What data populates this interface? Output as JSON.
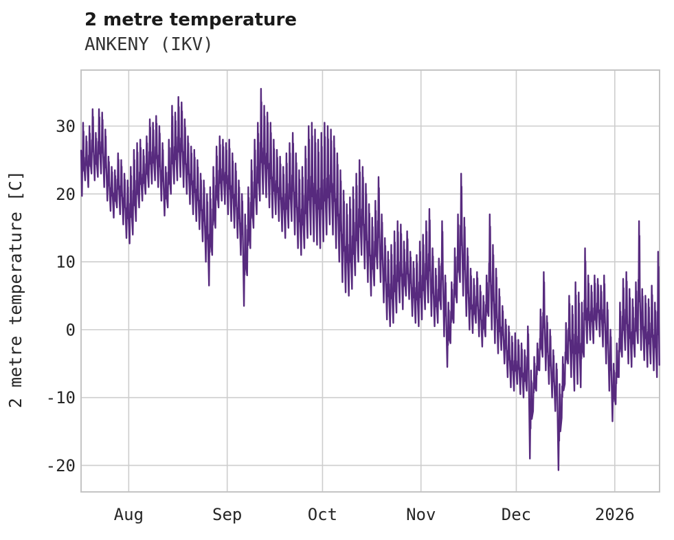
{
  "header": {
    "title": "2 metre temperature",
    "subtitle": "ANKENY (IKV)"
  },
  "chart_data": {
    "type": "line",
    "title": "2 metre temperature",
    "subtitle": "ANKENY (IKV)",
    "xlabel": "",
    "ylabel": "2 metre temperature [C]",
    "grid": true,
    "legend": "none",
    "line_color": "#572a7e",
    "grid_color": "#cdcdcd",
    "frame_color": "#c4c4c4",
    "ylim": [
      -23.9,
      38.25
    ],
    "xlim_days": [
      0,
      182.1
    ],
    "yticks": [
      30,
      20,
      10,
      0,
      -10,
      -20
    ],
    "xticks": [
      {
        "label": "Aug",
        "day": 15
      },
      {
        "label": "Sep",
        "day": 46
      },
      {
        "label": "Oct",
        "day": 76
      },
      {
        "label": "Nov",
        "day": 107
      },
      {
        "label": "Dec",
        "day": 137
      },
      {
        "label": "2026",
        "day": 168
      }
    ],
    "series": [
      {
        "name": "2 metre temperature",
        "daily_format": [
          "date",
          "min_c",
          "max_c"
        ],
        "daily": [
          [
            "Jul 17",
            19.7,
            30.5
          ],
          [
            "Jul 18",
            22,
            28.5
          ],
          [
            "Jul 19",
            21,
            30
          ],
          [
            "Jul 20",
            23,
            32.5
          ],
          [
            "Jul 21",
            22,
            29
          ],
          [
            "Jul 22",
            22.5,
            32.5
          ],
          [
            "Jul 23",
            23,
            32
          ],
          [
            "Jul 24",
            21,
            29.5
          ],
          [
            "Jul 25",
            19,
            25.5
          ],
          [
            "Jul 26",
            17.5,
            24
          ],
          [
            "Jul 27",
            16.5,
            23.5
          ],
          [
            "Jul 28",
            18,
            26
          ],
          [
            "Jul 29",
            17,
            25
          ],
          [
            "Jul 30",
            15.5,
            23
          ],
          [
            "Jul 31",
            13.5,
            22
          ],
          [
            "Aug 1",
            12.7,
            24
          ],
          [
            "Aug 2",
            14,
            26.5
          ],
          [
            "Aug 3",
            16,
            27.5
          ],
          [
            "Aug 4",
            18,
            28
          ],
          [
            "Aug 5",
            19,
            26.5
          ],
          [
            "Aug 6",
            20,
            28.5
          ],
          [
            "Aug 7",
            21,
            31
          ],
          [
            "Aug 8",
            21.5,
            30.5
          ],
          [
            "Aug 9",
            22,
            31.5
          ],
          [
            "Aug 10",
            21,
            30
          ],
          [
            "Aug 11",
            19,
            27.5
          ],
          [
            "Aug 12",
            16.8,
            24
          ],
          [
            "Aug 13",
            18,
            28
          ],
          [
            "Aug 14",
            20,
            33
          ],
          [
            "Aug 15",
            21.5,
            32
          ],
          [
            "Aug 16",
            22,
            34.3
          ],
          [
            "Aug 17",
            22.5,
            33.5
          ],
          [
            "Aug 18",
            21,
            31
          ],
          [
            "Aug 19",
            20,
            28.5
          ],
          [
            "Aug 20",
            18.5,
            27
          ],
          [
            "Aug 21",
            17,
            26.5
          ],
          [
            "Aug 22",
            16,
            25
          ],
          [
            "Aug 23",
            14.8,
            23
          ],
          [
            "Aug 24",
            13,
            22
          ],
          [
            "Aug 25",
            10,
            20
          ],
          [
            "Aug 26",
            6.5,
            21
          ],
          [
            "Aug 27",
            11,
            24
          ],
          [
            "Aug 28",
            15,
            27
          ],
          [
            "Aug 29",
            18,
            28.5
          ],
          [
            "Aug 30",
            19,
            28
          ],
          [
            "Aug 31",
            18.5,
            27.5
          ],
          [
            "Sep 1",
            17,
            28
          ],
          [
            "Sep 2",
            16,
            26
          ],
          [
            "Sep 3",
            15,
            24.5
          ],
          [
            "Sep 4",
            13.5,
            22
          ],
          [
            "Sep 5",
            11,
            20
          ],
          [
            "Sep 6",
            3.5,
            17
          ],
          [
            "Sep 7",
            8,
            21
          ],
          [
            "Sep 8",
            12,
            25
          ],
          [
            "Sep 9",
            15,
            28
          ],
          [
            "Sep 10",
            17,
            30.5
          ],
          [
            "Sep 11",
            19,
            35.5
          ],
          [
            "Sep 12",
            20,
            33
          ],
          [
            "Sep 13",
            19.5,
            32
          ],
          [
            "Sep 14",
            18,
            30.5
          ],
          [
            "Sep 15",
            16.5,
            28
          ],
          [
            "Sep 16",
            17,
            26.5
          ],
          [
            "Sep 17",
            16,
            25.5
          ],
          [
            "Sep 18",
            14.5,
            24
          ],
          [
            "Sep 19",
            13.5,
            26
          ],
          [
            "Sep 20",
            15,
            27.5
          ],
          [
            "Sep 21",
            16,
            29
          ],
          [
            "Sep 22",
            14,
            26
          ],
          [
            "Sep 23",
            12,
            23.5
          ],
          [
            "Sep 24",
            11,
            24
          ],
          [
            "Sep 25",
            12,
            27
          ],
          [
            "Sep 26",
            13.5,
            30
          ],
          [
            "Sep 27",
            14,
            30.5
          ],
          [
            "Sep 28",
            13,
            29.5
          ],
          [
            "Sep 29",
            12.5,
            28
          ],
          [
            "Sep 30",
            12,
            29
          ],
          [
            "Oct 1",
            13,
            30.5
          ],
          [
            "Oct 2",
            14,
            30
          ],
          [
            "Oct 3",
            15.5,
            29.5
          ],
          [
            "Oct 4",
            14,
            28.5
          ],
          [
            "Oct 5",
            12,
            26
          ],
          [
            "Oct 6",
            10,
            23.5
          ],
          [
            "Oct 7",
            7,
            20.5
          ],
          [
            "Oct 8",
            5.5,
            18.5
          ],
          [
            "Oct 9",
            5,
            19.5
          ],
          [
            "Oct 10",
            6,
            21
          ],
          [
            "Oct 11",
            8,
            23
          ],
          [
            "Oct 12",
            10,
            25
          ],
          [
            "Oct 13",
            11,
            24
          ],
          [
            "Oct 14",
            9,
            21.5
          ],
          [
            "Oct 15",
            7,
            18.5
          ],
          [
            "Oct 16",
            5,
            16.5
          ],
          [
            "Oct 17",
            6.5,
            19
          ],
          [
            "Oct 18",
            9,
            22.5
          ],
          [
            "Oct 19",
            7,
            17
          ],
          [
            "Oct 20",
            4,
            13.5
          ],
          [
            "Oct 21",
            1.5,
            11.5
          ],
          [
            "Oct 22",
            0.5,
            12.5
          ],
          [
            "Oct 23",
            1,
            14.5
          ],
          [
            "Oct 24",
            2.5,
            16
          ],
          [
            "Oct 25",
            4,
            15.5
          ],
          [
            "Oct 26",
            3,
            13
          ],
          [
            "Oct 27",
            5,
            14.5
          ],
          [
            "Oct 28",
            4.5,
            11.5
          ],
          [
            "Oct 29",
            2,
            10
          ],
          [
            "Oct 30",
            1,
            11
          ],
          [
            "Oct 31",
            0.5,
            13
          ],
          [
            "Nov 1",
            1.5,
            14
          ],
          [
            "Nov 2",
            3,
            16
          ],
          [
            "Nov 3",
            4,
            17.8
          ],
          [
            "Nov 4",
            2,
            12
          ],
          [
            "Nov 5",
            0.5,
            9
          ],
          [
            "Nov 6",
            1,
            10.5
          ],
          [
            "Nov 7",
            3,
            16
          ],
          [
            "Nov 8",
            -1,
            8
          ],
          [
            "Nov 9",
            -5.5,
            4
          ],
          [
            "Nov 10",
            -2,
            7
          ],
          [
            "Nov 11",
            1,
            12
          ],
          [
            "Nov 12",
            4,
            17
          ],
          [
            "Nov 13",
            7,
            23
          ],
          [
            "Nov 14",
            5,
            16.5
          ],
          [
            "Nov 15",
            2,
            12
          ],
          [
            "Nov 16",
            0,
            9
          ],
          [
            "Nov 17",
            -0.5,
            7.5
          ],
          [
            "Nov 18",
            1,
            8.5
          ],
          [
            "Nov 19",
            -1,
            6.5
          ],
          [
            "Nov 20",
            -2.5,
            5
          ],
          [
            "Nov 21",
            -1,
            8
          ],
          [
            "Nov 22",
            2,
            17
          ],
          [
            "Nov 23",
            0,
            12.5
          ],
          [
            "Nov 24",
            -2,
            9
          ],
          [
            "Nov 25",
            -3.5,
            6
          ],
          [
            "Nov 26",
            -3,
            3.5
          ],
          [
            "Nov 27",
            -5,
            1.5
          ],
          [
            "Nov 28",
            -7,
            0.5
          ],
          [
            "Nov 29",
            -8.5,
            -1
          ],
          [
            "Nov 30",
            -9,
            -0.5
          ],
          [
            "Dec 1",
            -8,
            -1.5
          ],
          [
            "Dec 2",
            -9.5,
            -2
          ],
          [
            "Dec 3",
            -10,
            -3
          ],
          [
            "Dec 4",
            -9,
            0.5
          ],
          [
            "Dec 5",
            -19,
            -6
          ],
          [
            "Dec 6",
            -12,
            -4
          ],
          [
            "Dec 7",
            -9,
            -2
          ],
          [
            "Dec 8",
            -6,
            3
          ],
          [
            "Dec 9",
            -4,
            8.5
          ],
          [
            "Dec 10",
            -6,
            2
          ],
          [
            "Dec 11",
            -8,
            0
          ],
          [
            "Dec 12",
            -10,
            -3
          ],
          [
            "Dec 13",
            -12,
            -5
          ],
          [
            "Dec 14",
            -20.7,
            -8
          ],
          [
            "Dec 15",
            -13,
            -4
          ],
          [
            "Dec 16",
            -8,
            1
          ],
          [
            "Dec 17",
            -5,
            5
          ],
          [
            "Dec 18",
            -7,
            3.5
          ],
          [
            "Dec 19",
            -9,
            7
          ],
          [
            "Dec 20",
            -8,
            5.5
          ],
          [
            "Dec 21",
            -8.5,
            4
          ],
          [
            "Dec 22",
            -4,
            12
          ],
          [
            "Dec 23",
            -2,
            8
          ],
          [
            "Dec 24",
            -1.5,
            6.5
          ],
          [
            "Dec 25",
            -2,
            8
          ],
          [
            "Dec 26",
            0,
            7.5
          ],
          [
            "Dec 27",
            -1,
            6.5
          ],
          [
            "Dec 28",
            -2.5,
            8
          ],
          [
            "Dec 29",
            -5,
            4
          ],
          [
            "Dec 30",
            -9,
            0
          ],
          [
            "Dec 31",
            -13.5,
            -5
          ],
          [
            "Jan 1",
            -11,
            -2
          ],
          [
            "Jan 2",
            -7,
            4
          ],
          [
            "Jan 3",
            -4,
            7.5
          ],
          [
            "Jan 4",
            -3,
            8.5
          ],
          [
            "Jan 5",
            -5,
            6
          ],
          [
            "Jan 6",
            -5.5,
            4.5
          ],
          [
            "Jan 7",
            -4,
            7
          ],
          [
            "Jan 8",
            -2,
            16
          ],
          [
            "Jan 9",
            -3,
            6
          ],
          [
            "Jan 10",
            -4.5,
            5
          ],
          [
            "Jan 11",
            -5.5,
            4.5
          ],
          [
            "Jan 12",
            -5,
            6.5
          ],
          [
            "Jan 13",
            -6,
            4
          ],
          [
            "Jan 14",
            -7,
            11.5
          ],
          [
            "Jan 15",
            -5.2,
            -5.2
          ]
        ]
      }
    ]
  },
  "layout_note": "single line chart, white background, light gray grid, no legend"
}
